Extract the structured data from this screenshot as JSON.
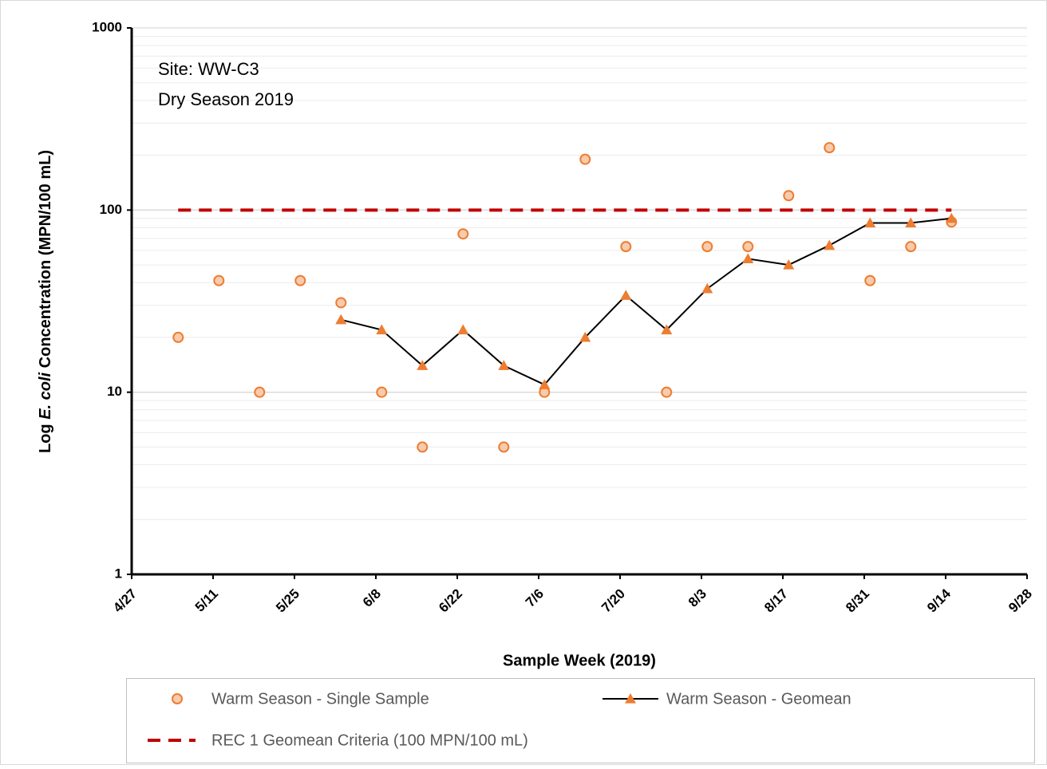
{
  "chart_data": {
    "type": "scatter",
    "annotations": [
      "Site: WW-C3",
      "Dry Season 2019"
    ],
    "ylabel": [
      "Log ",
      "E. coli",
      " Concentration (MPN/100 mL)"
    ],
    "xlabel": "Sample Week (2019)",
    "x": [
      "5/5",
      "5/12",
      "5/19",
      "5/26",
      "6/2",
      "6/9",
      "6/16",
      "6/23",
      "6/30",
      "7/7",
      "7/14",
      "7/21",
      "7/28",
      "8/4",
      "8/11",
      "8/18",
      "8/25",
      "9/1",
      "9/8",
      "9/15"
    ],
    "series": [
      {
        "name": "Warm Season - Single Sample",
        "type": "scatter",
        "color": "#ed7d31",
        "values": [
          20,
          41,
          10,
          41,
          31,
          10,
          5,
          74,
          5,
          10,
          190,
          63,
          10,
          63,
          63,
          120,
          220,
          41,
          63,
          86
        ]
      },
      {
        "name": "Warm Season - Geomean",
        "type": "line",
        "color": "#ed7d31",
        "values": [
          null,
          null,
          null,
          null,
          25,
          22,
          14,
          22,
          14,
          11,
          20,
          34,
          22,
          37,
          54,
          50,
          64,
          85,
          85,
          90
        ]
      },
      {
        "name": "REC 1 Geomean Criteria (100 MPN/100 mL)",
        "type": "dashed",
        "color": "#c00000",
        "values": [
          100,
          100,
          100,
          100,
          100,
          100,
          100,
          100,
          100,
          100,
          100,
          100,
          100,
          100,
          100,
          100,
          100,
          100,
          100,
          100
        ]
      }
    ],
    "xlim": [
      "4/27",
      "9/28"
    ],
    "xticks": [
      "4/27",
      "5/11",
      "5/25",
      "6/8",
      "6/22",
      "7/6",
      "7/20",
      "8/3",
      "8/17",
      "8/31",
      "9/14",
      "9/28"
    ],
    "ylim": [
      1,
      1000
    ],
    "yticks": [
      1,
      10,
      100,
      1000
    ],
    "log_y": true,
    "grid": true,
    "legend": "bottom"
  }
}
